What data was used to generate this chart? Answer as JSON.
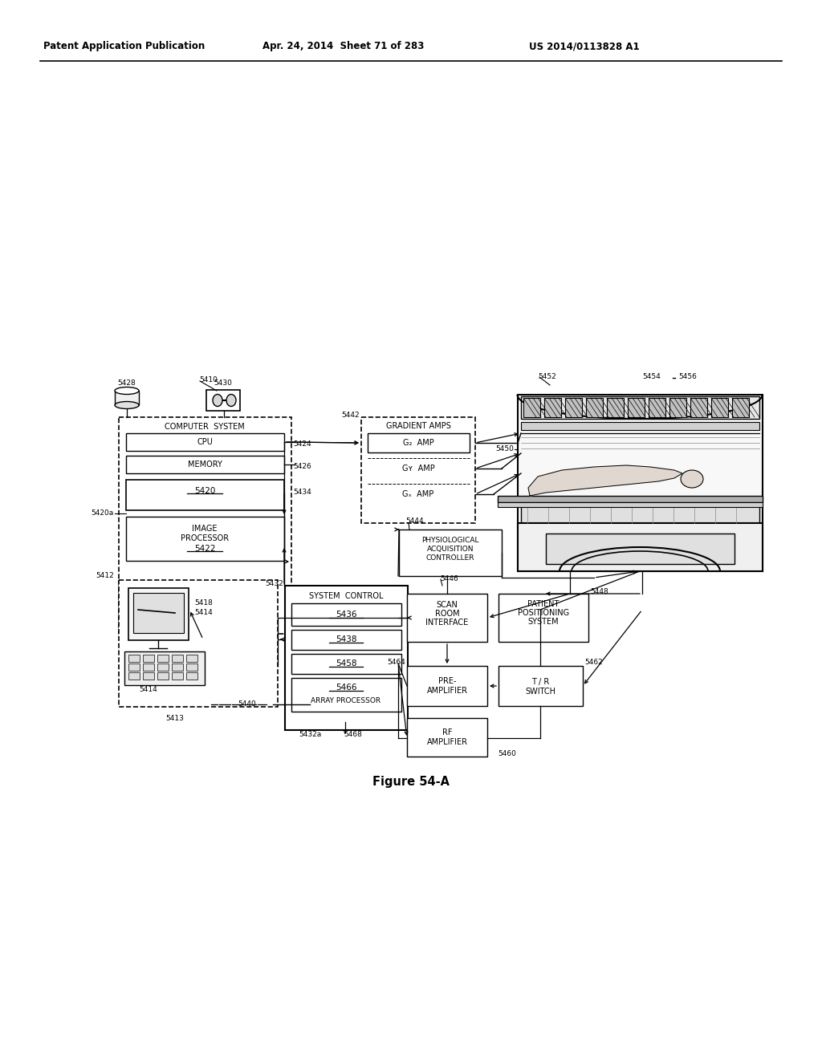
{
  "bg_color": "#ffffff",
  "header_left": "Patent Application Publication",
  "header_mid": "Apr. 24, 2014  Sheet 71 of 283",
  "header_right": "US 2014/0113828 A1",
  "figure_label": "Figure 54-A",
  "page_width": 10.24,
  "page_height": 13.2,
  "dpi": 100
}
